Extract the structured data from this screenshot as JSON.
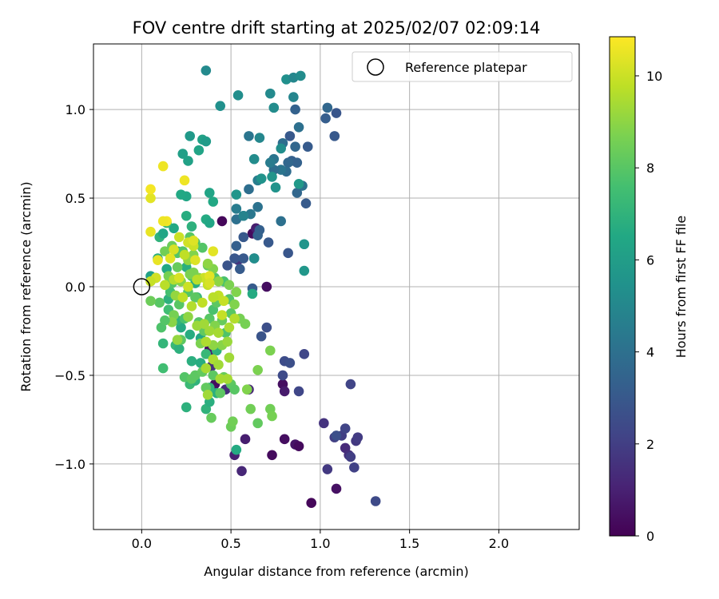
{
  "chart_data": {
    "type": "scatter",
    "title": "FOV centre drift starting at 2025/02/07 02:09:14",
    "xlabel": "Angular distance from reference (arcmin)",
    "ylabel": "Rotation from reference (arcmin)",
    "xlim": [
      -0.27,
      2.45
    ],
    "ylim": [
      -1.37,
      1.37
    ],
    "xticks": [
      0.0,
      0.5,
      1.0,
      1.5,
      2.0
    ],
    "xtick_labels": [
      "0.0",
      "0.5",
      "1.0",
      "1.5",
      "2.0"
    ],
    "yticks": [
      -1.0,
      -0.5,
      0.0,
      0.5,
      1.0
    ],
    "ytick_labels": [
      "−1.0",
      "−0.5",
      "0.0",
      "0.5",
      "1.0"
    ],
    "grid": true,
    "legend": {
      "location": "top-right",
      "entries": [
        "Reference platepar"
      ]
    },
    "reference_point": {
      "x": 0.0,
      "y": 0.0
    },
    "colorbar": {
      "label": "Hours from first FF file",
      "range": [
        0,
        10.85
      ],
      "ticks": [
        0,
        2,
        4,
        6,
        8,
        10
      ],
      "tick_labels": [
        "0",
        "2",
        "4",
        "6",
        "8",
        "10"
      ],
      "colormap": "viridis"
    },
    "points": [
      [
        0.45,
        0.37,
        0.2
      ],
      [
        0.38,
        -0.35,
        0.5
      ],
      [
        0.62,
        0.3,
        0.3
      ],
      [
        0.41,
        -0.55,
        0.4
      ],
      [
        0.73,
        -0.95,
        0.3
      ],
      [
        0.8,
        -0.86,
        0.4
      ],
      [
        0.86,
        -0.89,
        0.6
      ],
      [
        0.88,
        -0.9,
        0.3
      ],
      [
        0.95,
        -1.22,
        0.2
      ],
      [
        1.09,
        -1.14,
        0.5
      ],
      [
        0.79,
        -0.55,
        0.4
      ],
      [
        0.8,
        -0.59,
        0.8
      ],
      [
        0.52,
        -0.95,
        1.0
      ],
      [
        0.56,
        -1.04,
        1.2
      ],
      [
        0.58,
        -0.86,
        0.9
      ],
      [
        0.47,
        -0.58,
        1.4
      ],
      [
        0.6,
        -0.58,
        1.2
      ],
      [
        0.7,
        0.0,
        0.4
      ],
      [
        0.64,
        0.33,
        0.9
      ],
      [
        0.54,
        0.15,
        1.6
      ],
      [
        0.38,
        -0.38,
        0.9
      ],
      [
        0.39,
        -0.45,
        1.5
      ],
      [
        1.14,
        -0.91,
        1.3
      ],
      [
        1.16,
        -0.95,
        1.5
      ],
      [
        1.02,
        -0.77,
        1.6
      ],
      [
        1.04,
        -1.03,
        1.8
      ],
      [
        1.08,
        -0.85,
        2.0
      ],
      [
        1.12,
        -0.84,
        2.0
      ],
      [
        1.14,
        -0.8,
        2.2
      ],
      [
        1.17,
        -0.96,
        2.0
      ],
      [
        1.2,
        -0.87,
        1.8
      ],
      [
        1.21,
        -0.85,
        1.9
      ],
      [
        1.19,
        -1.02,
        2.1
      ],
      [
        1.31,
        -1.21,
        2.4
      ],
      [
        0.88,
        -0.59,
        2.3
      ],
      [
        0.91,
        -0.38,
        2.3
      ],
      [
        0.8,
        -0.42,
        2.5
      ],
      [
        0.83,
        -0.43,
        2.6
      ],
      [
        0.79,
        -0.5,
        2.4
      ],
      [
        0.7,
        -0.23,
        2.6
      ],
      [
        0.67,
        -0.28,
        2.8
      ],
      [
        1.17,
        -0.55,
        2.2
      ],
      [
        1.09,
        -0.84,
        2.6
      ],
      [
        0.48,
        0.12,
        2.8
      ],
      [
        0.52,
        0.16,
        2.9
      ],
      [
        0.55,
        0.1,
        3.1
      ],
      [
        0.57,
        0.16,
        3.0
      ],
      [
        0.63,
        0.16,
        3.2
      ],
      [
        0.62,
        -0.01,
        3.1
      ],
      [
        0.53,
        0.23,
        3.3
      ],
      [
        0.57,
        0.28,
        3.0
      ],
      [
        0.66,
        0.32,
        3.3
      ],
      [
        0.71,
        0.25,
        3.0
      ],
      [
        0.65,
        0.29,
        3.4
      ],
      [
        0.82,
        0.19,
        2.9
      ],
      [
        0.92,
        0.47,
        3.1
      ],
      [
        0.84,
        0.71,
        3.3
      ],
      [
        0.87,
        0.7,
        3.4
      ],
      [
        0.88,
        0.9,
        4.0
      ],
      [
        0.86,
        1.0,
        3.4
      ],
      [
        0.83,
        0.85,
        3.0
      ],
      [
        0.93,
        0.79,
        3.1
      ],
      [
        1.03,
        0.95,
        3.2
      ],
      [
        1.09,
        0.98,
        2.9
      ],
      [
        1.08,
        0.85,
        3.0
      ],
      [
        1.04,
        1.01,
        3.6
      ],
      [
        0.86,
        0.79,
        3.6
      ],
      [
        0.79,
        0.81,
        3.9
      ],
      [
        0.82,
        0.7,
        3.6
      ],
      [
        0.81,
        0.65,
        3.8
      ],
      [
        0.9,
        0.57,
        4.1
      ],
      [
        0.87,
        0.53,
        3.6
      ],
      [
        0.78,
        0.66,
        4.2
      ],
      [
        0.74,
        0.66,
        3.9
      ],
      [
        0.74,
        0.72,
        4.2
      ],
      [
        0.72,
        0.7,
        4.5
      ],
      [
        0.67,
        0.61,
        4.2
      ],
      [
        0.65,
        0.6,
        4.6
      ],
      [
        0.6,
        0.55,
        3.9
      ],
      [
        0.65,
        0.45,
        4.1
      ],
      [
        0.6,
        0.85,
        4.2
      ],
      [
        0.78,
        0.37,
        4.0
      ],
      [
        0.61,
        0.41,
        4.3
      ],
      [
        0.53,
        0.44,
        4.5
      ],
      [
        0.53,
        0.38,
        4.0
      ],
      [
        0.57,
        0.4,
        4.3
      ],
      [
        0.81,
        1.17,
        5.4
      ],
      [
        0.85,
        1.18,
        5.0
      ],
      [
        0.89,
        1.19,
        5.2
      ],
      [
        0.72,
        1.09,
        5.1
      ],
      [
        0.74,
        1.01,
        5.2
      ],
      [
        0.85,
        1.07,
        4.9
      ],
      [
        0.66,
        0.84,
        5.0
      ],
      [
        0.63,
        0.72,
        5.2
      ],
      [
        0.67,
        0.61,
        5.5
      ],
      [
        0.57,
        0.4,
        4.8
      ],
      [
        0.53,
        0.52,
        5.6
      ],
      [
        0.36,
        1.22,
        5.1
      ],
      [
        0.44,
        1.02,
        5.4
      ],
      [
        0.54,
        1.08,
        5.3
      ],
      [
        0.73,
        0.62,
        5.6
      ],
      [
        0.75,
        0.56,
        5.5
      ],
      [
        0.78,
        0.78,
        5.3
      ],
      [
        0.88,
        0.58,
        5.8
      ],
      [
        0.91,
        0.24,
        5.6
      ],
      [
        0.91,
        0.09,
        5.7
      ],
      [
        0.63,
        0.16,
        5.3
      ],
      [
        0.27,
        0.85,
        5.8
      ],
      [
        0.34,
        0.83,
        6.2
      ],
      [
        0.36,
        0.82,
        5.9
      ],
      [
        0.32,
        0.77,
        6.3
      ],
      [
        0.23,
        0.75,
        6.1
      ],
      [
        0.26,
        0.71,
        6.2
      ],
      [
        0.25,
        0.51,
        6.4
      ],
      [
        0.22,
        0.52,
        6.5
      ],
      [
        0.38,
        0.53,
        6.3
      ],
      [
        0.4,
        0.48,
        6.5
      ],
      [
        0.36,
        0.38,
        6.6
      ],
      [
        0.38,
        0.36,
        6.4
      ],
      [
        0.25,
        0.4,
        6.7
      ],
      [
        0.28,
        0.34,
        6.9
      ],
      [
        0.18,
        0.33,
        6.5
      ],
      [
        0.1,
        0.28,
        7.0
      ],
      [
        0.14,
        0.36,
        7.2
      ],
      [
        0.12,
        0.3,
        6.4
      ],
      [
        0.09,
        0.16,
        6.8
      ],
      [
        0.14,
        0.1,
        6.5
      ],
      [
        0.15,
        -0.07,
        6.9
      ],
      [
        0.12,
        -0.32,
        7.1
      ],
      [
        0.19,
        -0.33,
        7.2
      ],
      [
        0.21,
        -0.35,
        6.9
      ],
      [
        0.22,
        -0.23,
        6.6
      ],
      [
        0.27,
        -0.27,
        6.7
      ],
      [
        0.28,
        -0.42,
        6.8
      ],
      [
        0.25,
        -0.68,
        6.9
      ],
      [
        0.27,
        -0.55,
        7.3
      ],
      [
        0.3,
        -0.53,
        7.0
      ],
      [
        0.33,
        -0.43,
        6.7
      ],
      [
        0.36,
        -0.69,
        7.0
      ],
      [
        0.38,
        -0.65,
        6.8
      ],
      [
        0.36,
        -0.38,
        7.2
      ],
      [
        0.42,
        -0.36,
        7.0
      ],
      [
        0.42,
        -0.6,
        6.8
      ],
      [
        0.38,
        -0.57,
        7.1
      ],
      [
        0.33,
        -0.29,
        6.5
      ],
      [
        0.05,
        0.06,
        6.2
      ],
      [
        0.53,
        -0.92,
        6.6
      ],
      [
        0.62,
        -0.04,
        6.6
      ],
      [
        0.2,
        0.2,
        6.2
      ],
      [
        0.25,
        0.11,
        6.8
      ],
      [
        0.3,
        0.02,
        6.7
      ],
      [
        0.31,
        -0.06,
        7.2
      ],
      [
        0.2,
        -0.19,
        7.0
      ],
      [
        0.12,
        -0.46,
        7.5
      ],
      [
        0.11,
        -0.23,
        7.8
      ],
      [
        0.15,
        -0.13,
        7.5
      ],
      [
        0.16,
        -0.03,
        7.6
      ],
      [
        0.17,
        0.02,
        7.9
      ],
      [
        0.21,
        -0.1,
        8.0
      ],
      [
        0.24,
        -0.18,
        7.7
      ],
      [
        0.26,
        -0.03,
        7.9
      ],
      [
        0.28,
        0.06,
        7.6
      ],
      [
        0.3,
        -0.06,
        8.1
      ],
      [
        0.32,
        -0.2,
        7.9
      ],
      [
        0.35,
        -0.25,
        8.2
      ],
      [
        0.38,
        -0.18,
        8.0
      ],
      [
        0.4,
        -0.13,
        7.7
      ],
      [
        0.42,
        -0.09,
        8.1
      ],
      [
        0.45,
        -0.19,
        8.3
      ],
      [
        0.47,
        -0.26,
        7.8
      ],
      [
        0.5,
        -0.15,
        8.0
      ],
      [
        0.49,
        -0.07,
        7.9
      ],
      [
        0.46,
        0.03,
        7.7
      ],
      [
        0.41,
        0.05,
        7.8
      ],
      [
        0.37,
        0.12,
        8.2
      ],
      [
        0.34,
        0.22,
        7.9
      ],
      [
        0.3,
        0.25,
        7.8
      ],
      [
        0.27,
        0.28,
        8.0
      ],
      [
        0.23,
        0.2,
        7.9
      ],
      [
        0.2,
        0.19,
        7.9
      ],
      [
        0.22,
        -0.3,
        8.1
      ],
      [
        0.24,
        -0.51,
        7.9
      ],
      [
        0.28,
        -0.52,
        8.1
      ],
      [
        0.3,
        -0.5,
        8.1
      ],
      [
        0.34,
        -0.48,
        8.2
      ],
      [
        0.4,
        -0.5,
        8.1
      ],
      [
        0.36,
        -0.57,
        8.2
      ],
      [
        0.39,
        -0.74,
        8.3
      ],
      [
        0.44,
        -0.6,
        8.1
      ],
      [
        0.46,
        -0.51,
        8.3
      ],
      [
        0.5,
        -0.55,
        8.1
      ],
      [
        0.52,
        -0.58,
        8.0
      ],
      [
        0.5,
        -0.79,
        8.4
      ],
      [
        0.51,
        -0.76,
        8.5
      ],
      [
        0.61,
        -0.69,
        8.5
      ],
      [
        0.65,
        -0.77,
        8.2
      ],
      [
        0.72,
        -0.69,
        8.5
      ],
      [
        0.73,
        -0.73,
        8.6
      ],
      [
        0.65,
        -0.47,
        8.7
      ],
      [
        0.72,
        -0.36,
        8.7
      ],
      [
        0.59,
        -0.58,
        8.8
      ],
      [
        0.41,
        -0.22,
        8.8
      ],
      [
        0.45,
        -0.33,
        8.9
      ],
      [
        0.55,
        -0.18,
        8.6
      ],
      [
        0.58,
        -0.21,
        8.6
      ],
      [
        0.52,
        -0.1,
        8.8
      ],
      [
        0.53,
        -0.03,
        8.8
      ],
      [
        0.49,
        0.01,
        8.7
      ],
      [
        0.43,
        0.03,
        9.0
      ],
      [
        0.4,
        0.1,
        8.8
      ],
      [
        0.37,
        0.13,
        9.0
      ],
      [
        0.32,
        0.05,
        9.0
      ],
      [
        0.29,
        0.08,
        8.7
      ],
      [
        0.29,
        0.18,
        8.8
      ],
      [
        0.26,
        0.15,
        9.1
      ],
      [
        0.27,
        0.07,
        8.7
      ],
      [
        0.22,
        0.03,
        8.9
      ],
      [
        0.19,
        -0.05,
        9.1
      ],
      [
        0.18,
        -0.16,
        8.6
      ],
      [
        0.17,
        -0.2,
        8.9
      ],
      [
        0.2,
        -0.3,
        9.1
      ],
      [
        0.26,
        -0.17,
        9.0
      ],
      [
        0.31,
        -0.22,
        9.2
      ],
      [
        0.33,
        -0.32,
        8.7
      ],
      [
        0.35,
        -0.21,
        9.3
      ],
      [
        0.38,
        -0.25,
        9.3
      ],
      [
        0.4,
        -0.33,
        9.0
      ],
      [
        0.43,
        -0.26,
        9.4
      ],
      [
        0.48,
        -0.31,
        9.2
      ],
      [
        0.49,
        -0.4,
        9.3
      ],
      [
        0.36,
        -0.46,
        9.4
      ],
      [
        0.37,
        -0.61,
        9.3
      ],
      [
        0.4,
        -0.41,
        9.5
      ],
      [
        0.43,
        -0.44,
        9.3
      ],
      [
        0.44,
        -0.52,
        9.4
      ],
      [
        0.48,
        -0.52,
        9.4
      ],
      [
        0.36,
        -0.31,
        9.5
      ],
      [
        0.1,
        -0.09,
        8.0
      ],
      [
        0.08,
        0.05,
        8.0
      ],
      [
        0.13,
        0.2,
        8.5
      ],
      [
        0.17,
        0.23,
        8.4
      ],
      [
        0.2,
        0.11,
        8.3
      ],
      [
        0.15,
        0.06,
        8.6
      ],
      [
        0.05,
        -0.08,
        8.4
      ],
      [
        0.13,
        -0.19,
        7.9
      ],
      [
        0.24,
        0.18,
        9.8
      ],
      [
        0.26,
        0.25,
        10.1
      ],
      [
        0.29,
        0.23,
        10.0
      ],
      [
        0.3,
        0.15,
        10.3
      ],
      [
        0.4,
        0.2,
        10.4
      ],
      [
        0.35,
        0.05,
        10.0
      ],
      [
        0.37,
        0.01,
        9.9
      ],
      [
        0.31,
        0.04,
        9.7
      ],
      [
        0.26,
        0.0,
        10.0
      ],
      [
        0.18,
        0.04,
        9.6
      ],
      [
        0.13,
        0.01,
        9.7
      ],
      [
        0.08,
        0.05,
        10.1
      ],
      [
        0.05,
        0.03,
        9.9
      ],
      [
        0.09,
        0.15,
        10.5
      ],
      [
        0.14,
        0.37,
        10.7
      ],
      [
        0.12,
        0.37,
        10.6
      ],
      [
        0.05,
        0.31,
        10.5
      ],
      [
        0.05,
        0.5,
        10.4
      ],
      [
        0.05,
        0.55,
        10.7
      ],
      [
        0.12,
        0.68,
        10.6
      ],
      [
        0.24,
        0.6,
        10.6
      ],
      [
        0.29,
        0.26,
        10.3
      ],
      [
        0.38,
        0.06,
        10.4
      ],
      [
        0.43,
        -0.05,
        9.8
      ],
      [
        0.46,
        -0.08,
        9.9
      ],
      [
        0.52,
        -0.18,
        9.6
      ],
      [
        0.49,
        -0.23,
        9.5
      ],
      [
        0.45,
        -0.16,
        9.9
      ],
      [
        0.4,
        -0.06,
        9.7
      ],
      [
        0.38,
        0.02,
        10.2
      ],
      [
        0.34,
        -0.09,
        9.8
      ],
      [
        0.28,
        -0.11,
        9.6
      ],
      [
        0.23,
        -0.06,
        9.8
      ],
      [
        0.21,
        0.05,
        10.2
      ],
      [
        0.18,
        0.21,
        10.2
      ],
      [
        0.21,
        0.28,
        10.0
      ],
      [
        0.16,
        0.16,
        10.4
      ]
    ]
  }
}
